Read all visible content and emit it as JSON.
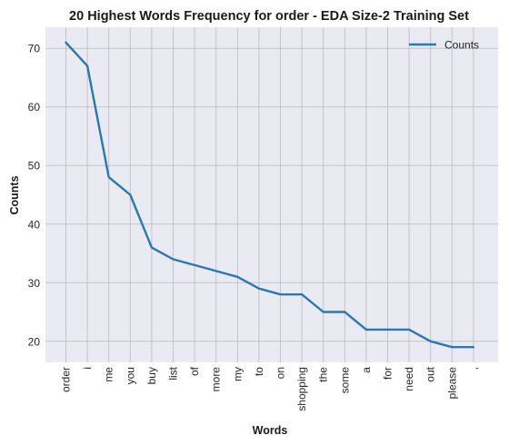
{
  "chart_data": {
    "type": "line",
    "title": "20 Highest Words Frequency for order - EDA Size-2 Training Set",
    "xlabel": "Words",
    "ylabel": "Counts",
    "categories": [
      "order",
      "i",
      "me",
      "you",
      "buy",
      "list",
      "of",
      "more",
      "my",
      "to",
      "on",
      "shopping",
      "the",
      "some",
      "a",
      "for",
      "need",
      "out",
      "please",
      ","
    ],
    "series": [
      {
        "name": "Counts",
        "values": [
          71,
          67,
          48,
          45,
          36,
          34,
          33,
          32,
          31,
          29,
          28,
          28,
          25,
          25,
          22,
          22,
          22,
          20,
          19,
          19
        ],
        "color": "#2a77b4"
      }
    ],
    "ylim": [
      16.4,
      73.6
    ],
    "yticks": [
      20,
      30,
      40,
      50,
      60,
      70
    ],
    "grid": true,
    "legend": "top-right",
    "background": "#eaeaf2",
    "grid_color": "#c3c3c8"
  }
}
